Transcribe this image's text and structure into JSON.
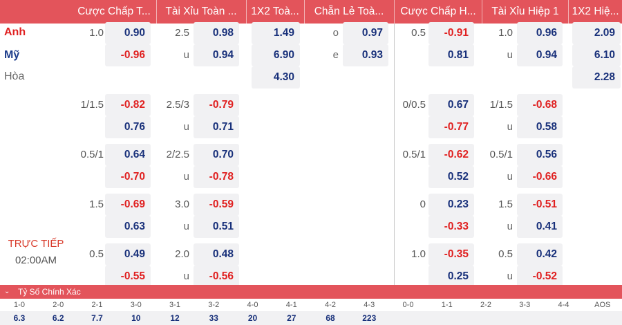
{
  "headers": [
    "Cược Chấp T...",
    "Tài Xỉu Toàn ...",
    "1X2 Toà...",
    "Chẵn Lẻ Toà...",
    "Cược Chấp H...",
    "Tài Xỉu Hiệp 1",
    "1X2 Hiệ..."
  ],
  "teams": {
    "home": "Anh",
    "away": "Mỹ",
    "draw": "Hòa"
  },
  "colors": {
    "home": "#e02020",
    "away": "#1a3a8a",
    "header": "#e3545b"
  },
  "ou_labels": {
    "under": "u",
    "odd": "o",
    "even": "e"
  },
  "main": {
    "x12": [
      "1.49",
      "6.90",
      "4.30"
    ],
    "oddeven": [
      "0.97",
      "0.93"
    ],
    "ht_x12": [
      "2.09",
      "6.10",
      "2.28"
    ],
    "blocks": [
      {
        "ah": "1.0",
        "ah_home": "0.90",
        "ah_away": "-0.96",
        "ou": "2.5",
        "ou_over": "0.98",
        "ou_under": "0.94",
        "h1_ah": "0.5",
        "h1_ah_home": "-0.91",
        "h1_ah_away": "0.81",
        "h1_ou": "1.0",
        "h1_ou_over": "0.96",
        "h1_ou_under": "0.94"
      },
      {
        "ah": "1/1.5",
        "ah_home": "-0.82",
        "ah_away": "0.76",
        "ou": "2.5/3",
        "ou_over": "-0.79",
        "ou_under": "0.71",
        "h1_ah": "0/0.5",
        "h1_ah_home": "0.67",
        "h1_ah_away": "-0.77",
        "h1_ou": "1/1.5",
        "h1_ou_over": "-0.68",
        "h1_ou_under": "0.58"
      },
      {
        "ah": "0.5/1",
        "ah_home": "0.64",
        "ah_away": "-0.70",
        "ou": "2/2.5",
        "ou_over": "0.70",
        "ou_under": "-0.78",
        "h1_ah": "0.5/1",
        "h1_ah_home": "-0.62",
        "h1_ah_away": "0.52",
        "h1_ou": "0.5/1",
        "h1_ou_over": "0.56",
        "h1_ou_under": "-0.66"
      },
      {
        "ah": "1.5",
        "ah_home": "-0.69",
        "ah_away": "0.63",
        "ou": "3.0",
        "ou_over": "-0.59",
        "ou_under": "0.51",
        "h1_ah": "0",
        "h1_ah_home": "0.23",
        "h1_ah_away": "-0.33",
        "h1_ou": "1.5",
        "h1_ou_over": "-0.51",
        "h1_ou_under": "0.41"
      },
      {
        "ah": "0.5",
        "ah_home": "0.49",
        "ah_away": "-0.55",
        "ou": "2.0",
        "ou_over": "0.48",
        "ou_under": "-0.56",
        "h1_ah": "1.0",
        "h1_ah_home": "-0.35",
        "h1_ah_away": "0.25",
        "h1_ou": "0.5",
        "h1_ou_over": "0.42",
        "h1_ou_under": "-0.52"
      }
    ]
  },
  "live": {
    "status": "TRỰC TIẾP",
    "time": "02:00AM"
  },
  "correct_score": {
    "title": "Tỷ Số Chính Xác",
    "scores": [
      "1-0",
      "2-0",
      "2-1",
      "3-0",
      "3-1",
      "3-2",
      "4-0",
      "4-1",
      "4-2",
      "4-3",
      "0-0",
      "1-1",
      "2-2",
      "3-3",
      "4-4",
      "AOS"
    ],
    "odds": [
      "6.3",
      "6.2",
      "7.7",
      "10",
      "12",
      "33",
      "20",
      "27",
      "68",
      "223",
      "",
      "",
      "",
      "",
      "",
      ""
    ]
  }
}
